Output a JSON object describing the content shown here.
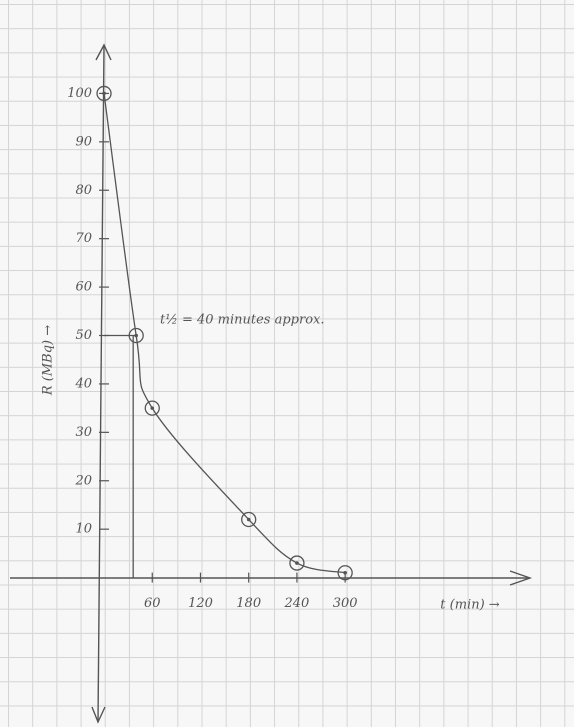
{
  "chart_data": {
    "type": "line",
    "annotation": "t½ = 40 minutes approx.",
    "x_label": "t (min) →",
    "y_label": "R (MBq) →",
    "x": [
      0,
      40,
      60,
      180,
      240,
      300
    ],
    "series": [
      {
        "color": "#555555",
        "values": [
          100,
          50,
          35,
          12,
          3,
          1
        ]
      }
    ],
    "xlim": [
      -117,
      530
    ],
    "ylim": [
      -29,
      110
    ],
    "xticks": [
      60,
      120,
      180,
      240,
      300
    ],
    "yticks": [
      10,
      20,
      30,
      40,
      50,
      60,
      70,
      80,
      90,
      100
    ]
  }
}
